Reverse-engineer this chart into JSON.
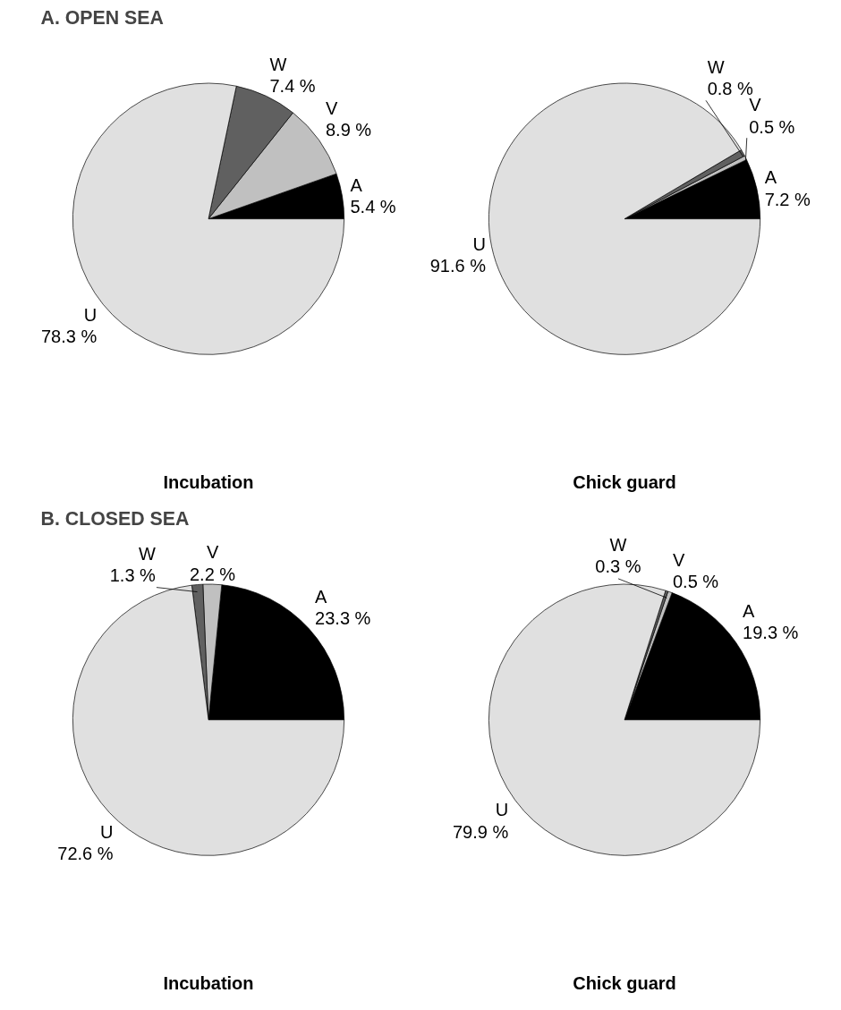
{
  "chart_data": [
    {
      "type": "pie",
      "title": "A. OPEN SEA",
      "xlabel": "Incubation",
      "categories": [
        "A",
        "V",
        "W",
        "U"
      ],
      "values": [
        5.4,
        8.9,
        7.4,
        78.3
      ],
      "colors": [
        "#000000",
        "#c0c0c0",
        "#606060",
        "#e0e0e0"
      ],
      "value_labels": [
        "5.4 %",
        "8.9 %",
        "7.4 %",
        "78.3 %"
      ]
    },
    {
      "type": "pie",
      "xlabel": "Chick guard",
      "categories": [
        "A",
        "V",
        "W",
        "U"
      ],
      "values": [
        7.2,
        0.5,
        0.8,
        91.6
      ],
      "colors": [
        "#000000",
        "#c0c0c0",
        "#606060",
        "#e0e0e0"
      ],
      "value_labels": [
        "7.2 %",
        "0.5 %",
        "0.8 %",
        "91.6 %"
      ]
    },
    {
      "type": "pie",
      "title": "B. CLOSED SEA",
      "xlabel": "Incubation",
      "categories": [
        "A",
        "V",
        "W",
        "U"
      ],
      "values": [
        23.3,
        2.2,
        1.3,
        72.6
      ],
      "colors": [
        "#000000",
        "#c0c0c0",
        "#606060",
        "#e0e0e0"
      ],
      "value_labels": [
        "23.3 %",
        "2.2 %",
        "1.3 %",
        "72.6 %"
      ]
    },
    {
      "type": "pie",
      "xlabel": "Chick guard",
      "categories": [
        "A",
        "V",
        "W",
        "U"
      ],
      "values": [
        19.3,
        0.5,
        0.3,
        79.9
      ],
      "colors": [
        "#000000",
        "#c0c0c0",
        "#606060",
        "#e0e0e0"
      ],
      "value_labels": [
        "19.3 %",
        "0.5 %",
        "0.3 %",
        "79.9 %"
      ]
    }
  ]
}
